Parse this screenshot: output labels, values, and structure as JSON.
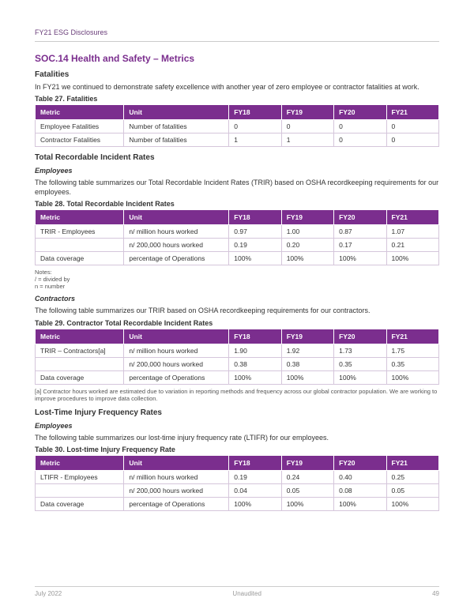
{
  "header": {
    "title": "FY21 ESG Disclosures"
  },
  "section": {
    "title": "SOC.14  Health and Safety – Metrics"
  },
  "fatalities": {
    "heading": "Fatalities",
    "intro": "In FY21 we continued to demonstrate safety excellence with another year of zero employee or contractor fatalities at work.",
    "caption": "Table 27. Fatalities",
    "cols": {
      "metric": "Metric",
      "unit": "Unit",
      "y18": "FY18",
      "y19": "FY19",
      "y20": "FY20",
      "y21": "FY21"
    },
    "r1": {
      "metric": "Employee Fatalities",
      "unit": "Number of fatalities",
      "y18": "0",
      "y19": "0",
      "y20": "0",
      "y21": "0"
    },
    "r2": {
      "metric": "Contractor Fatalities",
      "unit": "Number of fatalities",
      "y18": "1",
      "y19": "1",
      "y20": "0",
      "y21": "0"
    }
  },
  "trir": {
    "heading": "Total Recordable Incident Rates",
    "emp_heading": "Employees",
    "emp_intro": "The following table summarizes our Total Recordable Incident Rates (TRIR) based on OSHA recordkeeping requirements for our employees.",
    "emp_caption": "Table 28. Total Recordable Incident Rates",
    "cols": {
      "metric": "Metric",
      "unit": "Unit",
      "y18": "FY18",
      "y19": "FY19",
      "y20": "FY20",
      "y21": "FY21"
    },
    "emp_r1": {
      "metric": "TRIR - Employees",
      "unit": "n/ million hours worked",
      "y18": "0.97",
      "y19": "1.00",
      "y20": "0.87",
      "y21": "1.07"
    },
    "emp_r2": {
      "metric": "",
      "unit": "n/ 200,000 hours worked",
      "y18": "0.19",
      "y19": "0.20",
      "y20": "0.17",
      "y21": "0.21"
    },
    "emp_r3": {
      "metric": "Data coverage",
      "unit": "percentage of Operations",
      "y18": "100%",
      "y19": "100%",
      "y20": "100%",
      "y21": "100%"
    },
    "notes_label": "Notes:",
    "note1": "/ = divided by",
    "note2": "n = number",
    "con_heading": "Contractors",
    "con_intro": "The following table summarizes our TRIR based on OSHA recordkeeping requirements for our contractors.",
    "con_caption": "Table 29. Contractor Total Recordable Incident Rates",
    "con_r1": {
      "metric": "TRIR – Contractors[a]",
      "unit": "n/ million hours worked",
      "y18": "1.90",
      "y19": "1.92",
      "y20": "1.73",
      "y21": "1.75"
    },
    "con_r2": {
      "metric": "",
      "unit": "n/ 200,000 hours worked",
      "y18": "0.38",
      "y19": "0.38",
      "y20": "0.35",
      "y21": "0.35"
    },
    "con_r3": {
      "metric": "Data coverage",
      "unit": "percentage of Operations",
      "y18": "100%",
      "y19": "100%",
      "y20": "100%",
      "y21": "100%"
    },
    "footnote": "[a] Contractor hours worked are estimated due to variation in reporting methods and frequency across our global contractor population. We are working to improve procedures to improve data collection."
  },
  "ltifr": {
    "heading": "Lost-Time Injury Frequency Rates",
    "emp_heading": "Employees",
    "emp_intro": "The following table summarizes our lost-time injury frequency rate (LTIFR) for our employees.",
    "caption": "Table 30. Lost-time Injury Frequency Rate",
    "cols": {
      "metric": "Metric",
      "unit": "Unit",
      "y18": "FY18",
      "y19": "FY19",
      "y20": "FY20",
      "y21": "FY21"
    },
    "r1": {
      "metric": "LTIFR - Employees",
      "unit": "n/ million hours worked",
      "y18": "0.19",
      "y19": "0.24",
      "y20": "0.40",
      "y21": "0.25"
    },
    "r2": {
      "metric": "",
      "unit": "n/ 200,000 hours worked",
      "y18": "0.04",
      "y19": "0.05",
      "y20": "0.08",
      "y21": "0.05"
    },
    "r3": {
      "metric": "Data coverage",
      "unit": "percentage of Operations",
      "y18": "100%",
      "y19": "100%",
      "y20": "100%",
      "y21": "100%"
    }
  },
  "footer": {
    "date": "July 2022",
    "status": "Unaudited",
    "page": "49"
  },
  "style": {
    "brand_color": "#7b2e8e",
    "header_bg": "#7b2e8e",
    "header_text": "#ffffff",
    "border_color": "#d5c6db",
    "body_text": "#333333"
  }
}
